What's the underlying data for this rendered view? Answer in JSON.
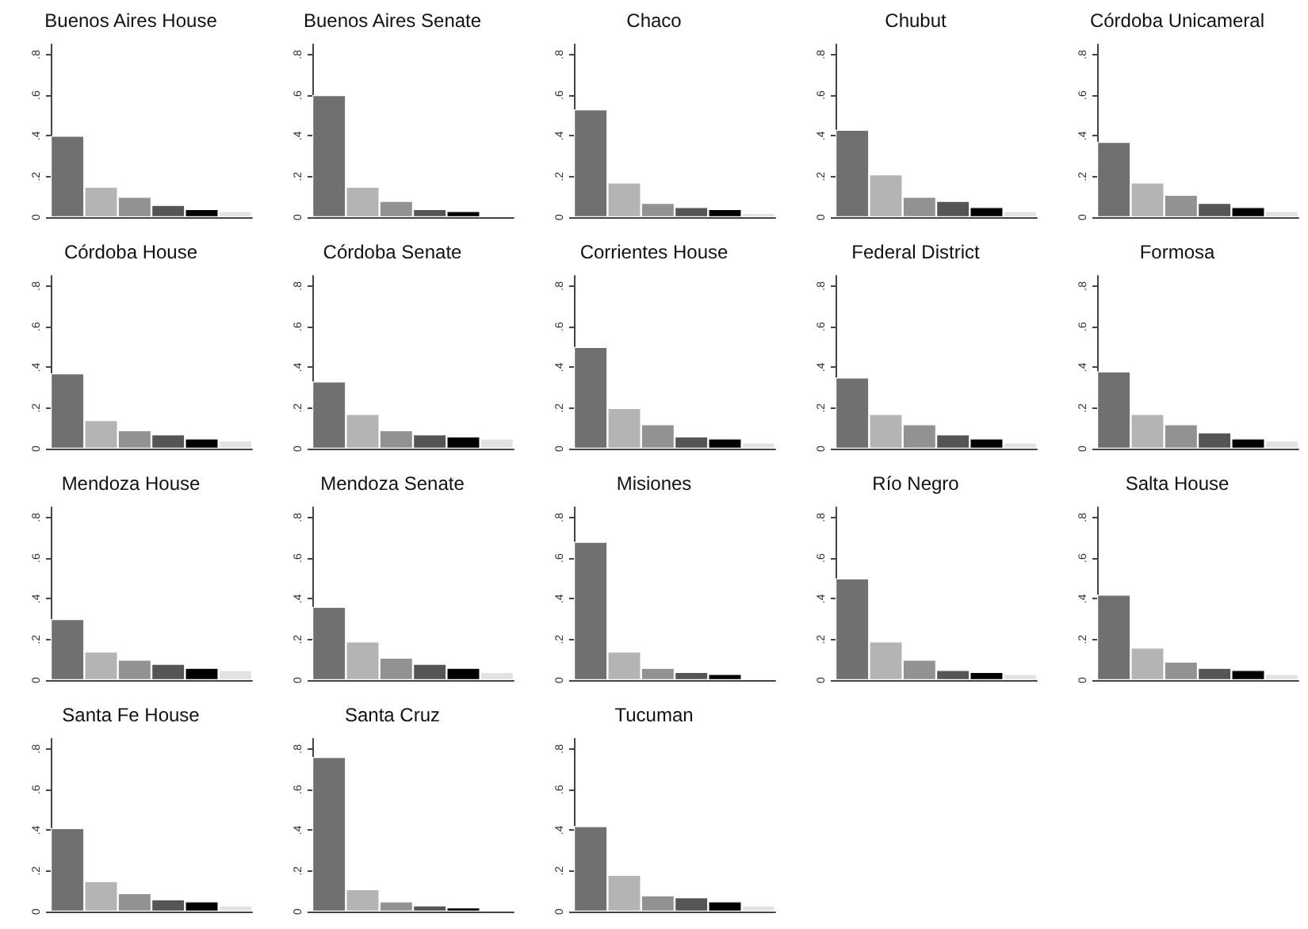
{
  "chart_data": [
    {
      "type": "bar",
      "title": "Buenos Aires House",
      "categories": [
        null,
        null,
        null,
        null,
        null,
        null
      ],
      "values": [
        0.4,
        0.15,
        0.1,
        0.06,
        0.04,
        0.03
      ],
      "colors": [
        "#707070",
        "#b4b4b4",
        "#929292",
        "#555555",
        "#000000",
        "#e2e2e2"
      ],
      "ylim": [
        0,
        0.85
      ],
      "yticks": [
        {
          "value": 0,
          "label": "0"
        },
        {
          "value": 0.2,
          "label": ".2"
        },
        {
          "value": 0.4,
          "label": ".4"
        },
        {
          "value": 0.6,
          "label": ".6"
        },
        {
          "value": 0.8,
          "label": ".8"
        }
      ],
      "tick_labels": "y"
    },
    {
      "type": "bar",
      "title": "Buenos Aires Senate",
      "categories": [
        null,
        null,
        null,
        null,
        null,
        null
      ],
      "values": [
        0.6,
        0.15,
        0.08,
        0.04,
        0.03,
        0.01
      ],
      "colors": [
        "#707070",
        "#b4b4b4",
        "#929292",
        "#555555",
        "#000000",
        "#e2e2e2"
      ],
      "ylim": [
        0,
        0.85
      ],
      "yticks": [
        {
          "value": 0,
          "label": "0"
        },
        {
          "value": 0.2,
          "label": ".2"
        },
        {
          "value": 0.4,
          "label": ".4"
        },
        {
          "value": 0.6,
          "label": ".6"
        },
        {
          "value": 0.8,
          "label": ".8"
        }
      ],
      "tick_labels": "y"
    },
    {
      "type": "bar",
      "title": "Chaco",
      "categories": [
        null,
        null,
        null,
        null,
        null,
        null
      ],
      "values": [
        0.53,
        0.17,
        0.07,
        0.05,
        0.04,
        0.02
      ],
      "colors": [
        "#707070",
        "#b4b4b4",
        "#929292",
        "#555555",
        "#000000",
        "#e2e2e2"
      ],
      "ylim": [
        0,
        0.85
      ],
      "yticks": [
        {
          "value": 0,
          "label": "0"
        },
        {
          "value": 0.2,
          "label": ".2"
        },
        {
          "value": 0.4,
          "label": ".4"
        },
        {
          "value": 0.6,
          "label": ".6"
        },
        {
          "value": 0.8,
          "label": ".8"
        }
      ],
      "tick_labels": "y"
    },
    {
      "type": "bar",
      "title": "Chubut",
      "categories": [
        null,
        null,
        null,
        null,
        null,
        null
      ],
      "values": [
        0.43,
        0.21,
        0.1,
        0.08,
        0.05,
        0.03
      ],
      "colors": [
        "#707070",
        "#b4b4b4",
        "#929292",
        "#555555",
        "#000000",
        "#e2e2e2"
      ],
      "ylim": [
        0,
        0.85
      ],
      "yticks": [
        {
          "value": 0,
          "label": "0"
        },
        {
          "value": 0.2,
          "label": ".2"
        },
        {
          "value": 0.4,
          "label": ".4"
        },
        {
          "value": 0.6,
          "label": ".6"
        },
        {
          "value": 0.8,
          "label": ".8"
        }
      ],
      "tick_labels": "y"
    },
    {
      "type": "bar",
      "title": "Córdoba Unicameral",
      "categories": [
        null,
        null,
        null,
        null,
        null,
        null
      ],
      "values": [
        0.37,
        0.17,
        0.11,
        0.07,
        0.05,
        0.03
      ],
      "colors": [
        "#707070",
        "#b4b4b4",
        "#929292",
        "#555555",
        "#000000",
        "#e2e2e2"
      ],
      "ylim": [
        0,
        0.85
      ],
      "yticks": [
        {
          "value": 0,
          "label": "0"
        },
        {
          "value": 0.2,
          "label": ".2"
        },
        {
          "value": 0.4,
          "label": ".4"
        },
        {
          "value": 0.6,
          "label": ".6"
        },
        {
          "value": 0.8,
          "label": ".8"
        }
      ],
      "tick_labels": "y"
    },
    {
      "type": "bar",
      "title": "Córdoba House",
      "categories": [
        null,
        null,
        null,
        null,
        null,
        null
      ],
      "values": [
        0.37,
        0.14,
        0.09,
        0.07,
        0.05,
        0.04
      ],
      "colors": [
        "#707070",
        "#b4b4b4",
        "#929292",
        "#555555",
        "#000000",
        "#e2e2e2"
      ],
      "ylim": [
        0,
        0.85
      ],
      "yticks": [
        {
          "value": 0,
          "label": "0"
        },
        {
          "value": 0.2,
          "label": ".2"
        },
        {
          "value": 0.4,
          "label": ".4"
        },
        {
          "value": 0.6,
          "label": ".6"
        },
        {
          "value": 0.8,
          "label": ".8"
        }
      ],
      "tick_labels": "y"
    },
    {
      "type": "bar",
      "title": "Córdoba Senate",
      "categories": [
        null,
        null,
        null,
        null,
        null,
        null
      ],
      "values": [
        0.33,
        0.17,
        0.09,
        0.07,
        0.06,
        0.05
      ],
      "colors": [
        "#707070",
        "#b4b4b4",
        "#929292",
        "#555555",
        "#000000",
        "#e2e2e2"
      ],
      "ylim": [
        0,
        0.85
      ],
      "yticks": [
        {
          "value": 0,
          "label": "0"
        },
        {
          "value": 0.2,
          "label": ".2"
        },
        {
          "value": 0.4,
          "label": ".4"
        },
        {
          "value": 0.6,
          "label": ".6"
        },
        {
          "value": 0.8,
          "label": ".8"
        }
      ],
      "tick_labels": "y"
    },
    {
      "type": "bar",
      "title": "Corrientes House",
      "categories": [
        null,
        null,
        null,
        null,
        null,
        null
      ],
      "values": [
        0.5,
        0.2,
        0.12,
        0.06,
        0.05,
        0.03
      ],
      "colors": [
        "#707070",
        "#b4b4b4",
        "#929292",
        "#555555",
        "#000000",
        "#e2e2e2"
      ],
      "ylim": [
        0,
        0.85
      ],
      "yticks": [
        {
          "value": 0,
          "label": "0"
        },
        {
          "value": 0.2,
          "label": ".2"
        },
        {
          "value": 0.4,
          "label": ".4"
        },
        {
          "value": 0.6,
          "label": ".6"
        },
        {
          "value": 0.8,
          "label": ".8"
        }
      ],
      "tick_labels": "y"
    },
    {
      "type": "bar",
      "title": "Federal District",
      "categories": [
        null,
        null,
        null,
        null,
        null,
        null
      ],
      "values": [
        0.35,
        0.17,
        0.12,
        0.07,
        0.05,
        0.03
      ],
      "colors": [
        "#707070",
        "#b4b4b4",
        "#929292",
        "#555555",
        "#000000",
        "#e2e2e2"
      ],
      "ylim": [
        0,
        0.85
      ],
      "yticks": [
        {
          "value": 0,
          "label": "0"
        },
        {
          "value": 0.2,
          "label": ".2"
        },
        {
          "value": 0.4,
          "label": ".4"
        },
        {
          "value": 0.6,
          "label": ".6"
        },
        {
          "value": 0.8,
          "label": ".8"
        }
      ],
      "tick_labels": "y"
    },
    {
      "type": "bar",
      "title": "Formosa",
      "categories": [
        null,
        null,
        null,
        null,
        null,
        null
      ],
      "values": [
        0.38,
        0.17,
        0.12,
        0.08,
        0.05,
        0.04
      ],
      "colors": [
        "#707070",
        "#b4b4b4",
        "#929292",
        "#555555",
        "#000000",
        "#e2e2e2"
      ],
      "ylim": [
        0,
        0.85
      ],
      "yticks": [
        {
          "value": 0,
          "label": "0"
        },
        {
          "value": 0.2,
          "label": ".2"
        },
        {
          "value": 0.4,
          "label": ".4"
        },
        {
          "value": 0.6,
          "label": ".6"
        },
        {
          "value": 0.8,
          "label": ".8"
        }
      ],
      "tick_labels": "y"
    },
    {
      "type": "bar",
      "title": "Mendoza House",
      "categories": [
        null,
        null,
        null,
        null,
        null,
        null
      ],
      "values": [
        0.3,
        0.14,
        0.1,
        0.08,
        0.06,
        0.05
      ],
      "colors": [
        "#707070",
        "#b4b4b4",
        "#929292",
        "#555555",
        "#000000",
        "#e2e2e2"
      ],
      "ylim": [
        0,
        0.85
      ],
      "yticks": [
        {
          "value": 0,
          "label": "0"
        },
        {
          "value": 0.2,
          "label": ".2"
        },
        {
          "value": 0.4,
          "label": ".4"
        },
        {
          "value": 0.6,
          "label": ".6"
        },
        {
          "value": 0.8,
          "label": ".8"
        }
      ],
      "tick_labels": "y"
    },
    {
      "type": "bar",
      "title": "Mendoza Senate",
      "categories": [
        null,
        null,
        null,
        null,
        null,
        null
      ],
      "values": [
        0.36,
        0.19,
        0.11,
        0.08,
        0.06,
        0.04
      ],
      "colors": [
        "#707070",
        "#b4b4b4",
        "#929292",
        "#555555",
        "#000000",
        "#e2e2e2"
      ],
      "ylim": [
        0,
        0.85
      ],
      "yticks": [
        {
          "value": 0,
          "label": "0"
        },
        {
          "value": 0.2,
          "label": ".2"
        },
        {
          "value": 0.4,
          "label": ".4"
        },
        {
          "value": 0.6,
          "label": ".6"
        },
        {
          "value": 0.8,
          "label": ".8"
        }
      ],
      "tick_labels": "y"
    },
    {
      "type": "bar",
      "title": "Misiones",
      "categories": [
        null,
        null,
        null,
        null,
        null,
        null
      ],
      "values": [
        0.68,
        0.14,
        0.06,
        0.04,
        0.03,
        0.01
      ],
      "colors": [
        "#707070",
        "#b4b4b4",
        "#929292",
        "#555555",
        "#000000",
        "#e2e2e2"
      ],
      "ylim": [
        0,
        0.85
      ],
      "yticks": [
        {
          "value": 0,
          "label": "0"
        },
        {
          "value": 0.2,
          "label": ".2"
        },
        {
          "value": 0.4,
          "label": ".4"
        },
        {
          "value": 0.6,
          "label": ".6"
        },
        {
          "value": 0.8,
          "label": ".8"
        }
      ],
      "tick_labels": "y"
    },
    {
      "type": "bar",
      "title": "Río Negro",
      "categories": [
        null,
        null,
        null,
        null,
        null,
        null
      ],
      "values": [
        0.5,
        0.19,
        0.1,
        0.05,
        0.04,
        0.03
      ],
      "colors": [
        "#707070",
        "#b4b4b4",
        "#929292",
        "#555555",
        "#000000",
        "#e2e2e2"
      ],
      "ylim": [
        0,
        0.85
      ],
      "yticks": [
        {
          "value": 0,
          "label": "0"
        },
        {
          "value": 0.2,
          "label": ".2"
        },
        {
          "value": 0.4,
          "label": ".4"
        },
        {
          "value": 0.6,
          "label": ".6"
        },
        {
          "value": 0.8,
          "label": ".8"
        }
      ],
      "tick_labels": "y"
    },
    {
      "type": "bar",
      "title": "Salta House",
      "categories": [
        null,
        null,
        null,
        null,
        null,
        null
      ],
      "values": [
        0.42,
        0.16,
        0.09,
        0.06,
        0.05,
        0.03
      ],
      "colors": [
        "#707070",
        "#b4b4b4",
        "#929292",
        "#555555",
        "#000000",
        "#e2e2e2"
      ],
      "ylim": [
        0,
        0.85
      ],
      "yticks": [
        {
          "value": 0,
          "label": "0"
        },
        {
          "value": 0.2,
          "label": ".2"
        },
        {
          "value": 0.4,
          "label": ".4"
        },
        {
          "value": 0.6,
          "label": ".6"
        },
        {
          "value": 0.8,
          "label": ".8"
        }
      ],
      "tick_labels": "y"
    },
    {
      "type": "bar",
      "title": "Santa Fe House",
      "categories": [
        null,
        null,
        null,
        null,
        null,
        null
      ],
      "values": [
        0.41,
        0.15,
        0.09,
        0.06,
        0.05,
        0.03
      ],
      "colors": [
        "#707070",
        "#b4b4b4",
        "#929292",
        "#555555",
        "#000000",
        "#e2e2e2"
      ],
      "ylim": [
        0,
        0.85
      ],
      "yticks": [
        {
          "value": 0,
          "label": "0"
        },
        {
          "value": 0.2,
          "label": ".2"
        },
        {
          "value": 0.4,
          "label": ".4"
        },
        {
          "value": 0.6,
          "label": ".6"
        },
        {
          "value": 0.8,
          "label": ".8"
        }
      ],
      "tick_labels": "y"
    },
    {
      "type": "bar",
      "title": "Santa Cruz",
      "categories": [
        null,
        null,
        null,
        null,
        null,
        null
      ],
      "values": [
        0.76,
        0.11,
        0.05,
        0.03,
        0.02,
        0.01
      ],
      "colors": [
        "#707070",
        "#b4b4b4",
        "#929292",
        "#555555",
        "#000000",
        "#e2e2e2"
      ],
      "ylim": [
        0,
        0.85
      ],
      "yticks": [
        {
          "value": 0,
          "label": "0"
        },
        {
          "value": 0.2,
          "label": ".2"
        },
        {
          "value": 0.4,
          "label": ".4"
        },
        {
          "value": 0.6,
          "label": ".6"
        },
        {
          "value": 0.8,
          "label": ".8"
        }
      ],
      "tick_labels": "y"
    },
    {
      "type": "bar",
      "title": "Tucuman",
      "categories": [
        null,
        null,
        null,
        null,
        null,
        null
      ],
      "values": [
        0.42,
        0.18,
        0.08,
        0.07,
        0.05,
        0.03
      ],
      "colors": [
        "#707070",
        "#b4b4b4",
        "#929292",
        "#555555",
        "#000000",
        "#e2e2e2"
      ],
      "ylim": [
        0,
        0.85
      ],
      "yticks": [
        {
          "value": 0,
          "label": "0"
        },
        {
          "value": 0.2,
          "label": ".2"
        },
        {
          "value": 0.4,
          "label": ".4"
        },
        {
          "value": 0.6,
          "label": ".6"
        },
        {
          "value": 0.8,
          "label": ".8"
        }
      ],
      "tick_labels": "y"
    }
  ]
}
